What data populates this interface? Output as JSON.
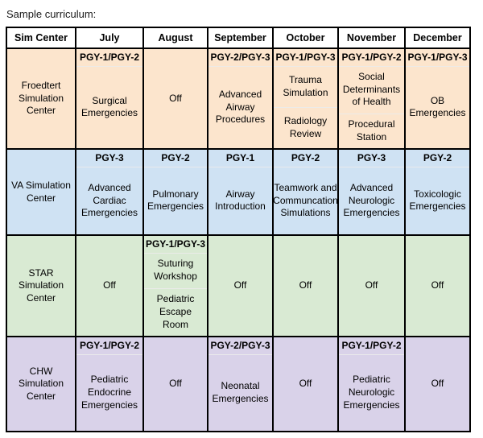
{
  "page": {
    "title": "Sample curriculum:"
  },
  "colors": {
    "border": "#000000",
    "header_bg": "#ffffff",
    "froedtert_row": "#fce5cd",
    "va_row": "#cfe2f3",
    "star_row": "#d9ead3",
    "chw_row": "#d9d2e9"
  },
  "table": {
    "headers": [
      "Sim Center",
      "July",
      "August",
      "September",
      "October",
      "November",
      "December"
    ],
    "rows": [
      {
        "center": "Froedtert Simulation Center",
        "color": "#fce5cd",
        "cells": [
          {
            "label": "PGY-1/PGY-2",
            "items": [
              "Surgical Emergencies"
            ]
          },
          {
            "items": [
              "Off"
            ]
          },
          {
            "label": "PGY-2/PGY-3",
            "items": [
              "Advanced Airway Procedures"
            ]
          },
          {
            "label": "PGY-1/PGY-3",
            "items": [
              "Trauma Simulation",
              "Radiology Review"
            ]
          },
          {
            "label": "PGY-1/PGY-2",
            "items": [
              "Social Determinants of Health",
              "Procedural Station"
            ]
          },
          {
            "label": "PGY-1/PGY-3",
            "items": [
              "OB Emergencies"
            ]
          }
        ]
      },
      {
        "center": "VA Simulation Center",
        "color": "#cfe2f3",
        "cells": [
          {
            "label": "PGY-3",
            "items": [
              "Advanced Cardiac Emergencies"
            ]
          },
          {
            "label": "PGY-2",
            "items": [
              "Pulmonary Emergencies"
            ]
          },
          {
            "label": "PGY-1",
            "items": [
              "Airway Introduction"
            ]
          },
          {
            "label": "PGY-2",
            "items": [
              "Teamwork and Communcation Simulations"
            ]
          },
          {
            "label": "PGY-3",
            "items": [
              "Advanced Neurologic Emergencies"
            ]
          },
          {
            "label": "PGY-2",
            "items": [
              "Toxicologic Emergencies"
            ]
          }
        ]
      },
      {
        "center": "STAR Simulation Center",
        "color": "#d9ead3",
        "cells": [
          {
            "items": [
              "Off"
            ]
          },
          {
            "label": "PGY-1/PGY-3",
            "items": [
              "Suturing Workshop",
              "Pediatric Escape Room"
            ]
          },
          {
            "items": [
              "Off"
            ]
          },
          {
            "items": [
              "Off"
            ]
          },
          {
            "items": [
              "Off"
            ]
          },
          {
            "items": [
              "Off"
            ]
          }
        ]
      },
      {
        "center": "CHW Simulation Center",
        "color": "#d9d2e9",
        "cells": [
          {
            "label": "PGY-1/PGY-2",
            "items": [
              "Pediatric Endocrine Emergencies"
            ]
          },
          {
            "items": [
              "Off"
            ]
          },
          {
            "label": "PGY-2/PGY-3",
            "items": [
              "Neonatal Emergencies"
            ]
          },
          {
            "items": [
              "Off"
            ]
          },
          {
            "label": "PGY-1/PGY-2",
            "items": [
              "Pediatric Neurologic Emergencies"
            ]
          },
          {
            "items": [
              "Off"
            ]
          }
        ]
      }
    ]
  }
}
